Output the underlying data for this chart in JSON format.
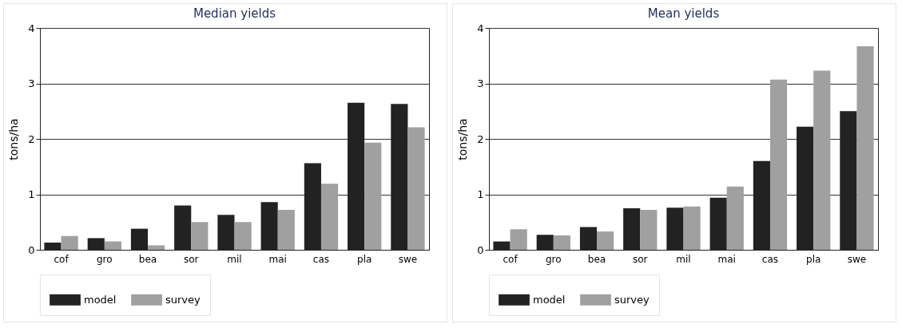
{
  "chart_data": [
    {
      "type": "bar",
      "title": "Median yields",
      "ylabel": "tons/ha",
      "categories": [
        "cof",
        "gro",
        "bea",
        "sor",
        "mil",
        "mai",
        "cas",
        "pla",
        "swe"
      ],
      "series": [
        {
          "name": "model",
          "color": "#222222",
          "values": [
            0.13,
            0.21,
            0.38,
            0.8,
            0.63,
            0.86,
            1.56,
            2.65,
            2.63
          ]
        },
        {
          "name": "survey",
          "color": "#a0a0a0",
          "values": [
            0.25,
            0.15,
            0.08,
            0.5,
            0.5,
            0.72,
            1.19,
            1.93,
            2.21
          ]
        }
      ],
      "ylim": [
        0,
        4
      ],
      "yticks": [
        0,
        1,
        2,
        3,
        4
      ],
      "grid": "y",
      "legend": "bottom"
    },
    {
      "type": "bar",
      "title": "Mean yields",
      "ylabel": "tons/ha",
      "categories": [
        "cof",
        "gro",
        "bea",
        "sor",
        "mil",
        "mai",
        "cas",
        "pla",
        "swe"
      ],
      "series": [
        {
          "name": "model",
          "color": "#222222",
          "values": [
            0.15,
            0.27,
            0.41,
            0.75,
            0.76,
            0.94,
            1.6,
            2.22,
            2.5
          ]
        },
        {
          "name": "survey",
          "color": "#a0a0a0",
          "values": [
            0.37,
            0.26,
            0.33,
            0.72,
            0.78,
            1.14,
            3.07,
            3.23,
            3.67
          ]
        }
      ],
      "ylim": [
        0,
        4
      ],
      "yticks": [
        0,
        1,
        2,
        3,
        4
      ],
      "grid": "y",
      "legend": "bottom"
    }
  ]
}
